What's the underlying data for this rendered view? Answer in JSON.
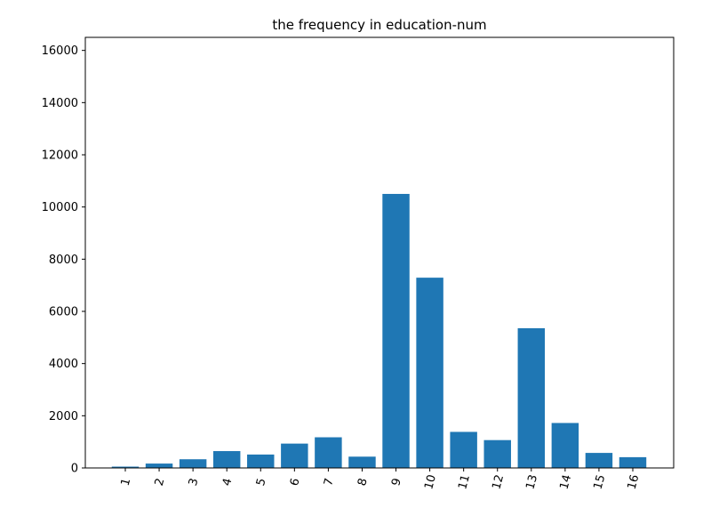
{
  "chart_data": {
    "type": "bar",
    "title": "the frequency in education-num",
    "xlabel": "",
    "ylabel": "",
    "categories": [
      "1",
      "2",
      "3",
      "4",
      "5",
      "6",
      "7",
      "8",
      "9",
      "10",
      "11",
      "12",
      "13",
      "14",
      "15",
      "16"
    ],
    "values": [
      51,
      168,
      333,
      646,
      514,
      933,
      1175,
      433,
      10501,
      7291,
      1382,
      1067,
      5355,
      1723,
      576,
      413
    ],
    "ylim": [
      0,
      16500
    ],
    "yticks": [
      0,
      2000,
      4000,
      6000,
      8000,
      10000,
      12000,
      14000,
      16000
    ],
    "ytick_labels": [
      "0",
      "2000",
      "4000",
      "6000",
      "8000",
      "10000",
      "12000",
      "14000",
      "16000"
    ],
    "grid": false,
    "bar_color": "#1f77b4"
  }
}
